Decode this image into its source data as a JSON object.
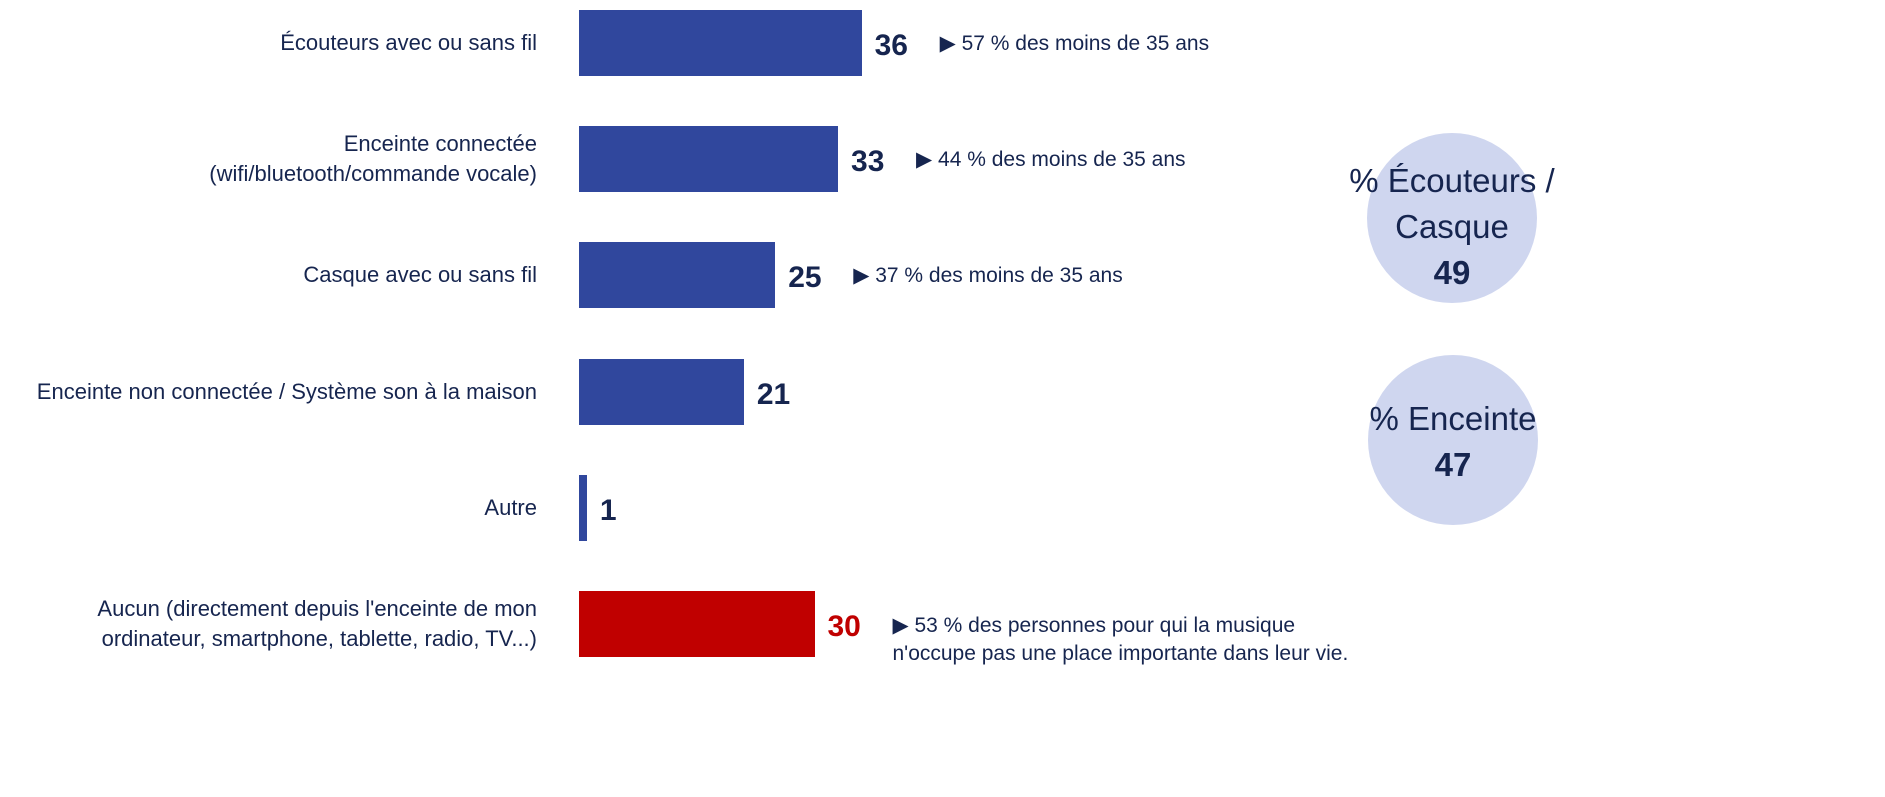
{
  "chart_data": {
    "type": "bar",
    "categories": [
      "Écouteurs avec ou sans fil",
      "Enceinte connectée\n(wifi/bluetooth/commande vocale)",
      "Casque avec ou sans fil",
      "Enceinte non connectée / Système son à la maison",
      "Autre",
      "Aucun (directement depuis l'enceinte de mon\nordinateur, smartphone, tablette, radio, TV...)"
    ],
    "values": [
      36,
      33,
      25,
      21,
      1,
      30
    ],
    "colors": [
      "#30479d",
      "#30479d",
      "#30479d",
      "#30479d",
      "#30479d",
      "#c00000"
    ],
    "label_colors": [
      "#16254f",
      "#16254f",
      "#16254f",
      "#16254f",
      "#16254f",
      "#c00000"
    ],
    "annotations": [
      "▶ 57 % des moins de 35 ans",
      "▶ 44 % des moins de 35 ans",
      "▶ 37 % des moins de 35 ans",
      null,
      null,
      "▶ 53 % des personnes pour qui la musique\nn'occupe pas une place importante dans leur vie."
    ],
    "summaries": [
      {
        "label": "% Écouteurs /\nCasque",
        "value": 49
      },
      {
        "label": "% Enceinte",
        "value": 47
      }
    ],
    "summary_color": "#cfd6ef"
  }
}
